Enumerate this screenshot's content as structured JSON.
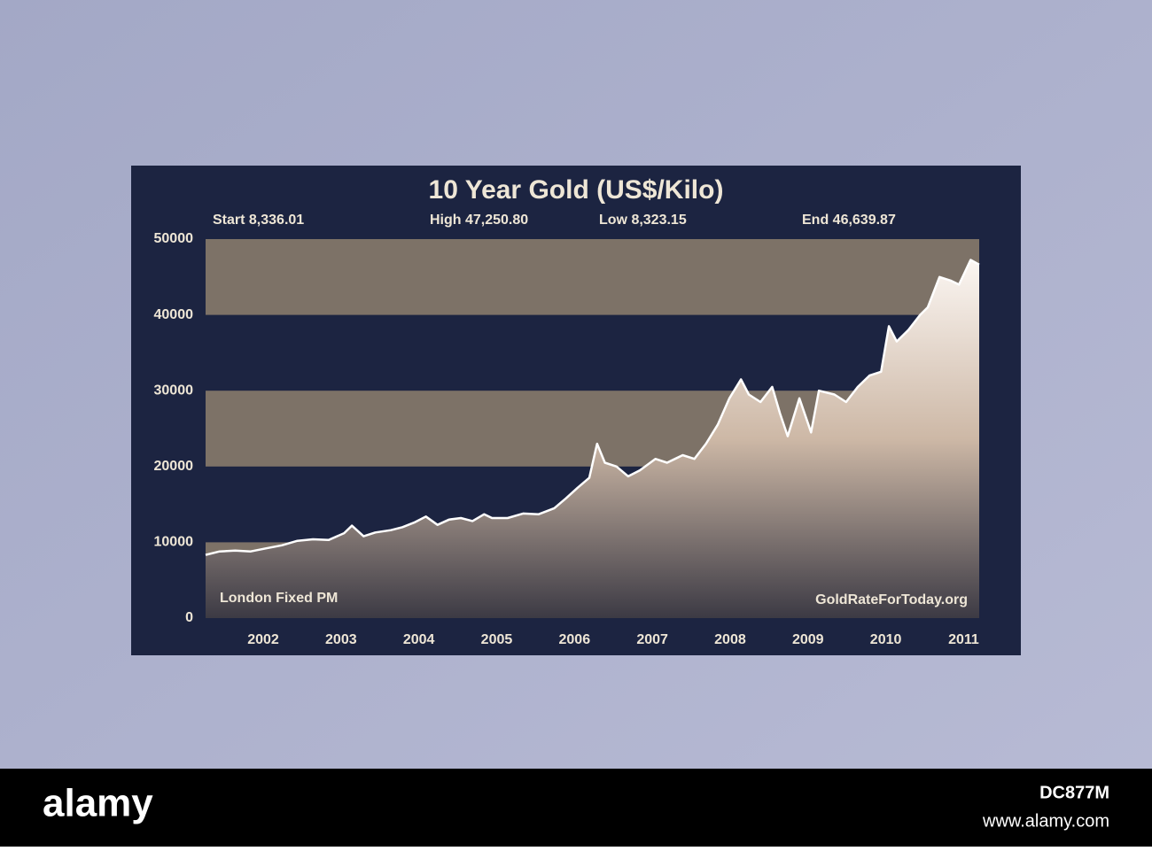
{
  "chart_data": {
    "type": "area-line",
    "title": "10 Year Gold (US$/Kilo)",
    "stats": [
      "Start 8,336.01",
      "High 47,250.80",
      "Low 8,323.15",
      "End 46,639.87"
    ],
    "annotations": [
      "London Fixed PM",
      "GoldRateForToday.org"
    ],
    "x": [
      2001.32,
      2001.5,
      2001.7,
      2001.9,
      2002.1,
      2002.3,
      2002.5,
      2002.7,
      2002.9,
      2003.1,
      2003.2,
      2003.35,
      2003.5,
      2003.7,
      2003.85,
      2004.0,
      2004.15,
      2004.3,
      2004.45,
      2004.6,
      2004.75,
      2004.9,
      2005.0,
      2005.2,
      2005.4,
      2005.6,
      2005.8,
      2005.95,
      2006.1,
      2006.25,
      2006.35,
      2006.45,
      2006.6,
      2006.75,
      2006.9,
      2007.1,
      2007.25,
      2007.45,
      2007.6,
      2007.75,
      2007.9,
      2008.05,
      2008.2,
      2008.3,
      2008.45,
      2008.6,
      2008.7,
      2008.8,
      2008.95,
      2009.1,
      2009.2,
      2009.4,
      2009.55,
      2009.7,
      2009.85,
      2010.0,
      2010.1,
      2010.2,
      2010.35,
      2010.5,
      2010.6,
      2010.75,
      2010.9,
      2011.0,
      2011.15,
      2011.26
    ],
    "series": [
      {
        "name": "Gold",
        "color": "#ffffff",
        "values": [
          8336.01,
          8800,
          8900,
          8800,
          9200,
          9600,
          10200,
          10400,
          10300,
          11200,
          12200,
          10800,
          11300,
          11600,
          12000,
          12600,
          13400,
          12300,
          13000,
          13200,
          12800,
          13700,
          13200,
          13200,
          13800,
          13700,
          14500,
          15800,
          17200,
          18500,
          23000,
          20500,
          20000,
          18700,
          19500,
          21000,
          20500,
          21500,
          21000,
          23000,
          25500,
          29000,
          31500,
          29500,
          28500,
          30500,
          27000,
          24000,
          29000,
          24500,
          30000,
          29500,
          28500,
          30500,
          32000,
          32500,
          38500,
          36500,
          38000,
          40000,
          41000,
          45000,
          44500,
          44000,
          47250.8,
          46639.87
        ]
      }
    ],
    "xlim": [
      2001.32,
      2011.26
    ],
    "xticks": [
      2002,
      2003,
      2004,
      2005,
      2006,
      2007,
      2008,
      2009,
      2010,
      2011
    ],
    "ylim": [
      0,
      50000
    ],
    "yticks": [
      0,
      10000,
      20000,
      30000,
      40000,
      50000
    ],
    "grid": "alternating-bands"
  },
  "footer": {
    "brand": "alamy",
    "image_id": "DC877M",
    "url": "www.alamy.com"
  }
}
